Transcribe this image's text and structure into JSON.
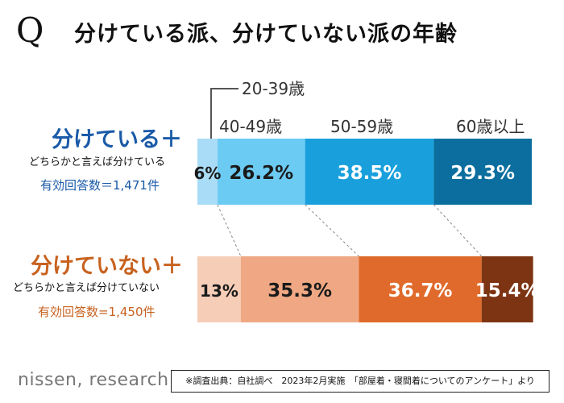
{
  "header": {
    "q_mark": "Q",
    "title": "分けている派、分けていない派の年齢"
  },
  "groups": [
    {
      "title": "分けている＋",
      "subtitle": "どちらかと言えば分けている",
      "n_label": "有効回答数＝1,471件",
      "color": "#1a5aa8"
    },
    {
      "title": "分けていない＋",
      "subtitle": "どちらかと言えば分けていない",
      "n_label": "有効回答数=1,450件",
      "color": "#c8621f"
    }
  ],
  "age_labels": {
    "a2039": "20-39歳",
    "a4049": "40-49歳",
    "a5059": "50-59歳",
    "a60": "60歳以上"
  },
  "footnote": "※調査出典：自社調べ　2023年2月実施　「部屋着・寝間着についてのアンケート」より",
  "brand": "nissen, research",
  "chart_data": {
    "type": "bar",
    "orientation": "horizontal",
    "stacked": true,
    "percent_stacked": true,
    "title": "分けている派、分けていない派の年齢",
    "categories": [
      "分けている＋どちらかと言えば分けている",
      "分けていない＋どちらかと言えば分けていない"
    ],
    "series": [
      {
        "name": "20-39歳",
        "values": [
          6.0,
          13.0
        ],
        "labels": [
          "6%",
          "13%"
        ],
        "colors": [
          "#a9dcf6",
          "#f6cdb7"
        ],
        "label_colors": [
          "#1a1a1a",
          "#1a1a1a"
        ]
      },
      {
        "name": "40-49歳",
        "values": [
          26.2,
          35.3
        ],
        "labels": [
          "26.2%",
          "35.3%"
        ],
        "colors": [
          "#6ccbf3",
          "#efa883"
        ],
        "label_colors": [
          "#1a1a1a",
          "#1a1a1a"
        ]
      },
      {
        "name": "50-59歳",
        "values": [
          38.5,
          36.7
        ],
        "labels": [
          "38.5%",
          "36.7%"
        ],
        "colors": [
          "#19a0dc",
          "#e06a2b"
        ],
        "label_colors": [
          "#ffffff",
          "#ffffff"
        ]
      },
      {
        "name": "60歳以上",
        "values": [
          29.3,
          15.4
        ],
        "labels": [
          "29.3%",
          "15.4%"
        ],
        "colors": [
          "#0b6e9e",
          "#7d3413"
        ],
        "label_colors": [
          "#ffffff",
          "#ffffff"
        ]
      }
    ],
    "xlim": [
      0,
      100
    ],
    "grid": false,
    "legend": "segment labels above bars"
  }
}
